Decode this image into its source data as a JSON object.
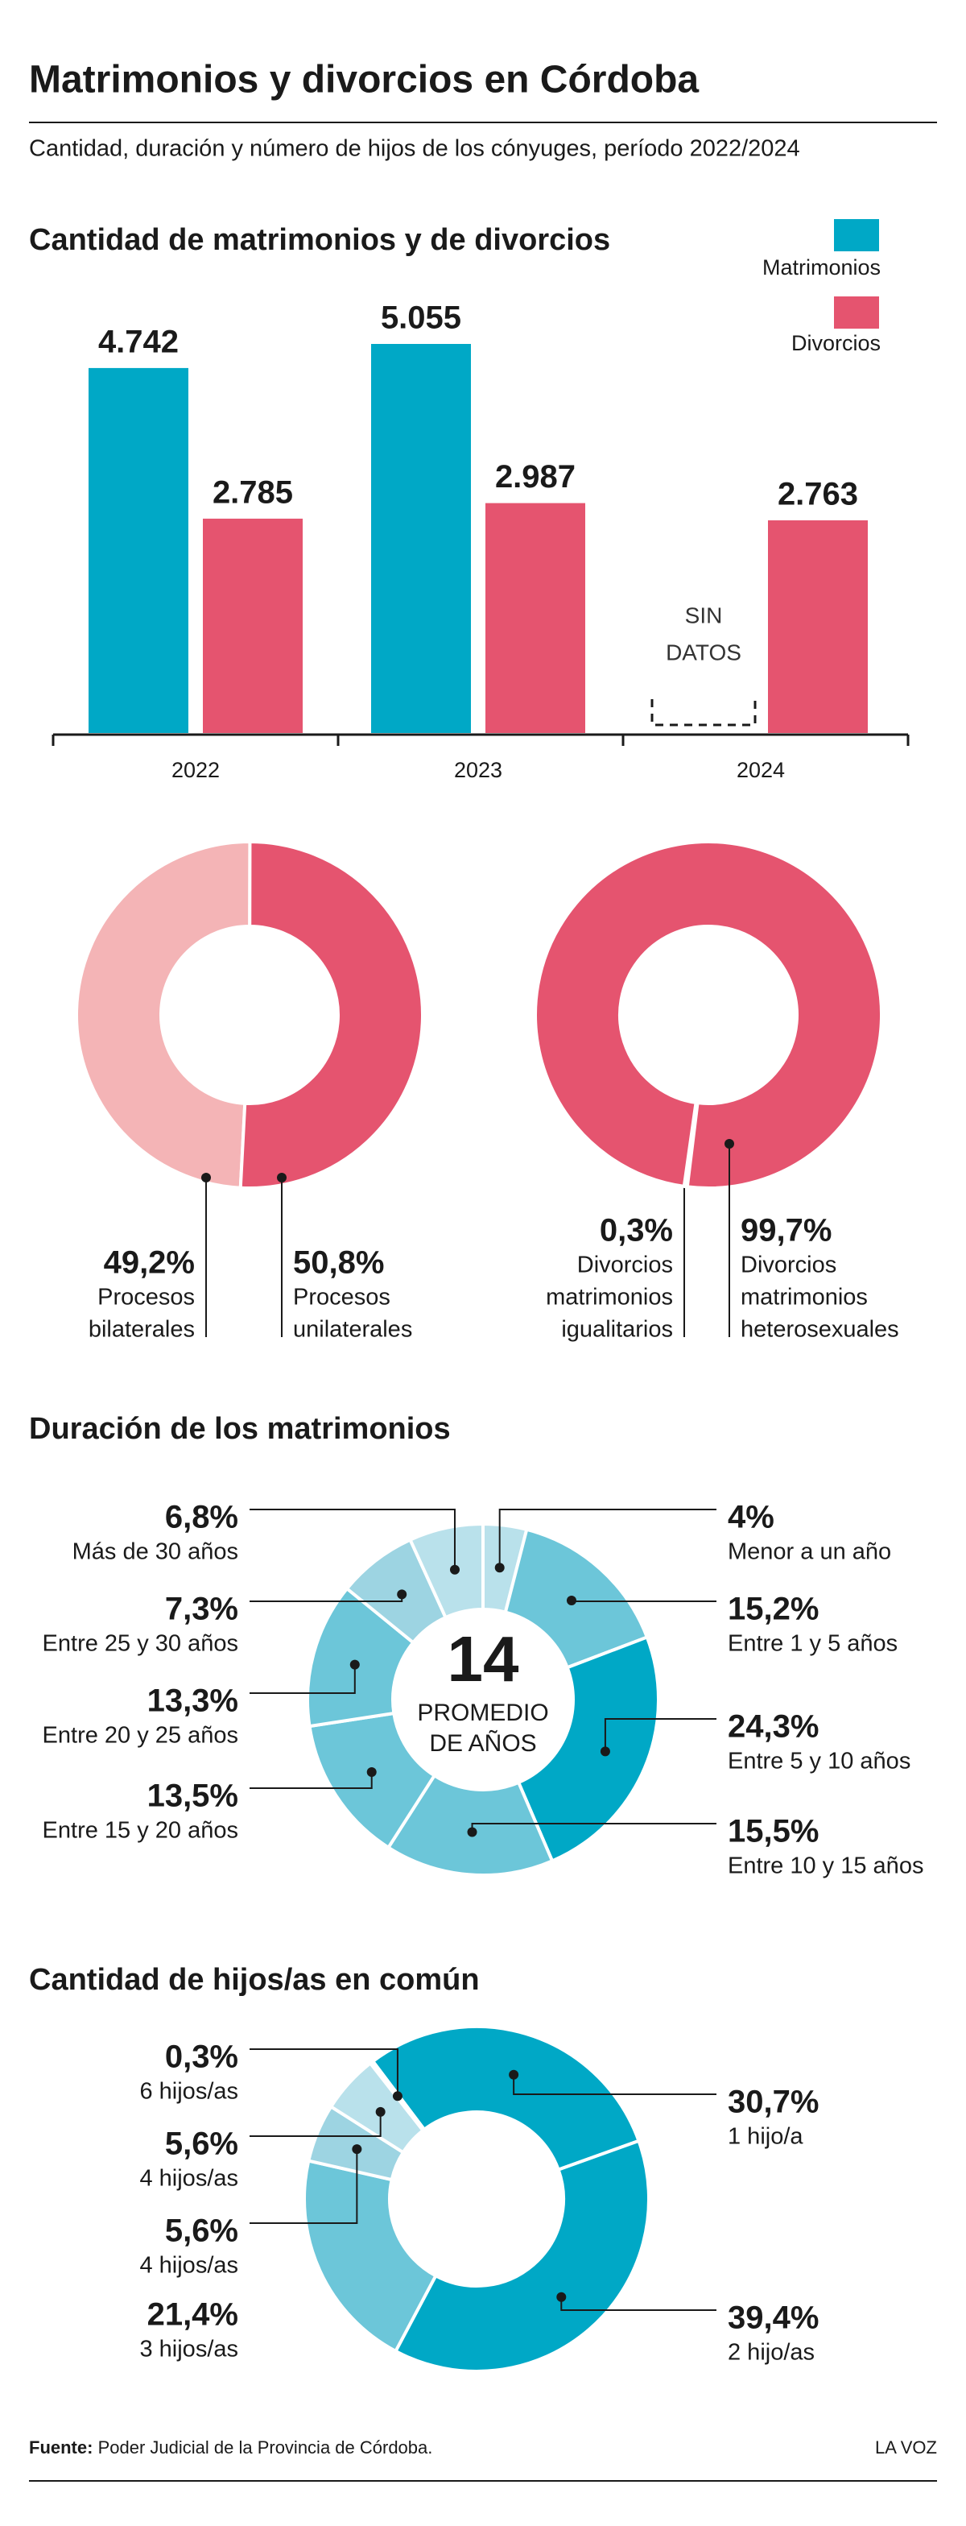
{
  "header": {
    "title": "Matrimonios y divorcios en Córdoba",
    "subtitle": "Cantidad, duración y número de hijos de los cónyuges, período 2022/2024"
  },
  "chart_data": [
    {
      "type": "bar",
      "title": "Cantidad de matrimonios y de divorcios",
      "categories": [
        "2022",
        "2023",
        "2024"
      ],
      "series": [
        {
          "name": "Matrimonios",
          "color": "#00a8c6",
          "values": [
            4742,
            5055,
            null
          ],
          "value_labels": [
            "4.742",
            "5.055",
            null
          ]
        },
        {
          "name": "Divorcios",
          "color": "#e5546f",
          "values": [
            2785,
            2987,
            2763
          ],
          "value_labels": [
            "2.785",
            "2.987",
            "2.763"
          ]
        }
      ],
      "annotation": [
        "SIN",
        "DATOS"
      ]
    },
    {
      "type": "pie",
      "donut": true,
      "values": [
        49.2,
        50.8
      ],
      "value_labels": [
        "49,2%",
        "50,8%"
      ],
      "labels": [
        [
          "Procesos",
          "bilaterales"
        ],
        [
          "Procesos",
          "unilaterales"
        ]
      ],
      "colors": [
        "#f4b4b6",
        "#e5546f"
      ]
    },
    {
      "type": "pie",
      "donut": true,
      "values": [
        0.3,
        99.7
      ],
      "value_labels": [
        "0,3%",
        "99,7%"
      ],
      "labels": [
        [
          "Divorcios",
          "matrimonios",
          "igualitarios"
        ],
        [
          "Divorcios",
          "matrimonios",
          "heterosexuales"
        ]
      ],
      "colors": [
        "#e5546f",
        "#e5546f"
      ]
    },
    {
      "type": "pie",
      "donut": true,
      "title": "Duración de los matrimonios",
      "center_value": 14,
      "center_text": [
        "PROMEDIO",
        "DE AÑOS"
      ],
      "values": [
        4,
        15.2,
        24.3,
        15.5,
        13.5,
        13.3,
        7.3,
        6.8
      ],
      "value_labels": [
        "4%",
        "15,2%",
        "24,3%",
        "15,5%",
        "13,5%",
        "13,3%",
        "7,3%",
        "6,8%"
      ],
      "labels": [
        [
          "Menor a un año"
        ],
        [
          "Entre 1 y 5 años"
        ],
        [
          "Entre 5 y 10 años"
        ],
        [
          "Entre 10 y 15 años"
        ],
        [
          "Entre 15 y 20 años"
        ],
        [
          "Entre 20 y 25 años"
        ],
        [
          "Entre 25 y 30 años"
        ],
        [
          "Más de 30 años"
        ]
      ],
      "colors": [
        "#b9e1eb",
        "#6cc6d9",
        "#00a8c6",
        "#6cc6d9",
        "#6cc6d9",
        "#6cc6d9",
        "#9dd4e2",
        "#b9e1eb"
      ]
    },
    {
      "type": "pie",
      "donut": true,
      "title": "Cantidad de hijos/as en común",
      "values": [
        30.7,
        39.4,
        21.4,
        5.6,
        5.6,
        0.3
      ],
      "value_labels": [
        "30,7%",
        "39,4%",
        "21,4%",
        "5,6%",
        "5,6%",
        "0,3%"
      ],
      "labels": [
        [
          "1 hijo/a"
        ],
        [
          "2 hijo/as"
        ],
        [
          "3 hijos/as"
        ],
        [
          "4 hijos/as"
        ],
        [
          "4 hijos/as"
        ],
        [
          "6 hijos/as"
        ]
      ],
      "colors": [
        "#00a8c6",
        "#00a8c6",
        "#6cc6d9",
        "#9dd4e2",
        "#b9e1eb",
        "#00a8c6"
      ]
    }
  ],
  "footer": {
    "source_label": "Fuente:",
    "source": "Poder Judicial de la Provincia de Córdoba.",
    "brand": "LA VOZ"
  }
}
